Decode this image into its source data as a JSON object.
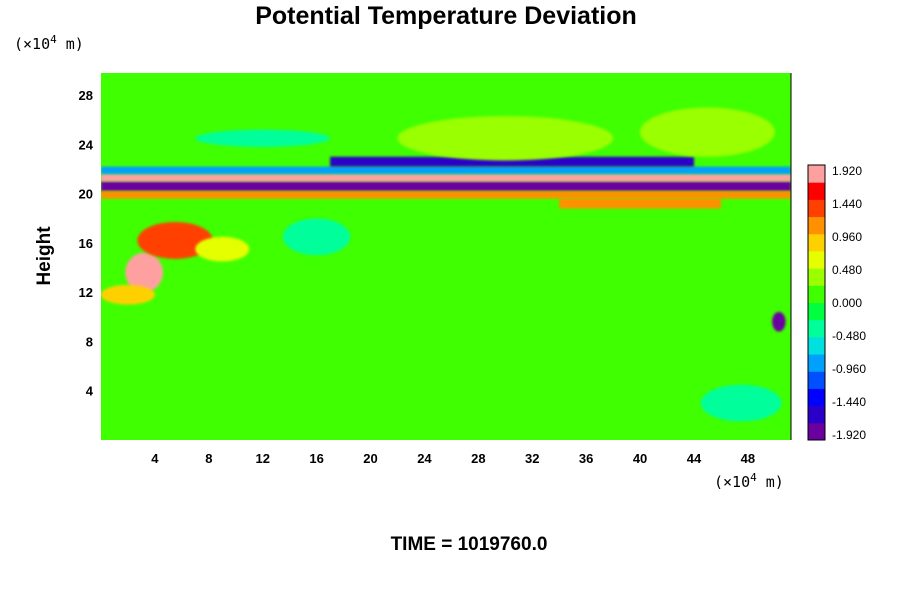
{
  "chart_data": {
    "type": "heatmap",
    "title": "Potential Temperature Deviation",
    "ylabel": "Height",
    "xlabel": "",
    "x_unit": {
      "prefix": "(×10",
      "exp": "4",
      "suffix": " m)"
    },
    "y_unit": {
      "prefix": "(×10",
      "exp": "4",
      "suffix": " m)"
    },
    "x_ticks": [
      "4",
      "8",
      "12",
      "16",
      "20",
      "24",
      "28",
      "32",
      "36",
      "40",
      "44",
      "48"
    ],
    "y_ticks": [
      "4",
      "8",
      "12",
      "16",
      "20",
      "24",
      "28"
    ],
    "xlim": [
      0,
      51.2
    ],
    "ylim": [
      0,
      29.8
    ],
    "colorbar": {
      "min": -2.0,
      "max": 2.0,
      "tick_labels": [
        "1.920",
        "1.440",
        "0.960",
        "0.480",
        "0.000",
        "-0.480",
        "-0.960",
        "-1.440",
        "-1.920"
      ],
      "colors": [
        "#6a00a0",
        "#2a00c8",
        "#0000ff",
        "#0050ff",
        "#00a0ff",
        "#00e0e0",
        "#00ff9a",
        "#00ff40",
        "#40ff00",
        "#9aff00",
        "#e6ff00",
        "#ffd000",
        "#ff9000",
        "#ff4000",
        "#ff0000",
        "#ffa0a0"
      ]
    },
    "features": [
      {
        "kind": "band",
        "x": [
          0,
          51.2
        ],
        "y": [
          20.2,
          21.0
        ],
        "value": -1.92
      },
      {
        "kind": "band",
        "x": [
          0,
          51.2
        ],
        "y": [
          21.0,
          21.6
        ],
        "value": 1.92
      },
      {
        "kind": "band",
        "x": [
          0,
          51.2
        ],
        "y": [
          21.6,
          22.2
        ],
        "value": -0.9
      },
      {
        "kind": "band",
        "x": [
          0,
          51.2
        ],
        "y": [
          19.6,
          20.2
        ],
        "value": 1.0
      },
      {
        "kind": "band",
        "x": [
          17,
          44
        ],
        "y": [
          22.2,
          23.0
        ],
        "value": -1.6
      },
      {
        "kind": "band",
        "x": [
          34,
          46
        ],
        "y": [
          18.8,
          19.6
        ],
        "value": 1.2
      },
      {
        "kind": "blob",
        "x": 3.2,
        "y": 13.6,
        "rx": 1.4,
        "ry": 1.6,
        "value": 1.92
      },
      {
        "kind": "blob",
        "x": 5.5,
        "y": 16.2,
        "rx": 2.8,
        "ry": 1.5,
        "value": 1.4
      },
      {
        "kind": "blob",
        "x": 2.0,
        "y": 11.8,
        "rx": 2.0,
        "ry": 0.8,
        "value": 0.9
      },
      {
        "kind": "blob",
        "x": 9.0,
        "y": 15.5,
        "rx": 2.0,
        "ry": 1.0,
        "value": 0.7
      },
      {
        "kind": "blob",
        "x": 50.3,
        "y": 9.6,
        "rx": 0.5,
        "ry": 0.8,
        "value": -1.92
      },
      {
        "kind": "blob",
        "x": 16.0,
        "y": 16.5,
        "rx": 2.5,
        "ry": 1.5,
        "value": -0.4
      },
      {
        "kind": "blob",
        "x": 12.0,
        "y": 24.5,
        "rx": 5.0,
        "ry": 0.7,
        "value": -0.5
      },
      {
        "kind": "blob",
        "x": 30.0,
        "y": 24.5,
        "rx": 8.0,
        "ry": 1.8,
        "value": 0.45
      },
      {
        "kind": "blob",
        "x": 45.0,
        "y": 25.0,
        "rx": 5.0,
        "ry": 2.0,
        "value": 0.3
      },
      {
        "kind": "blob",
        "x": 47.5,
        "y": 3.0,
        "rx": 3.0,
        "ry": 1.5,
        "value": -0.35
      }
    ]
  },
  "footer": {
    "time_label": "TIME = 1019760.0"
  }
}
